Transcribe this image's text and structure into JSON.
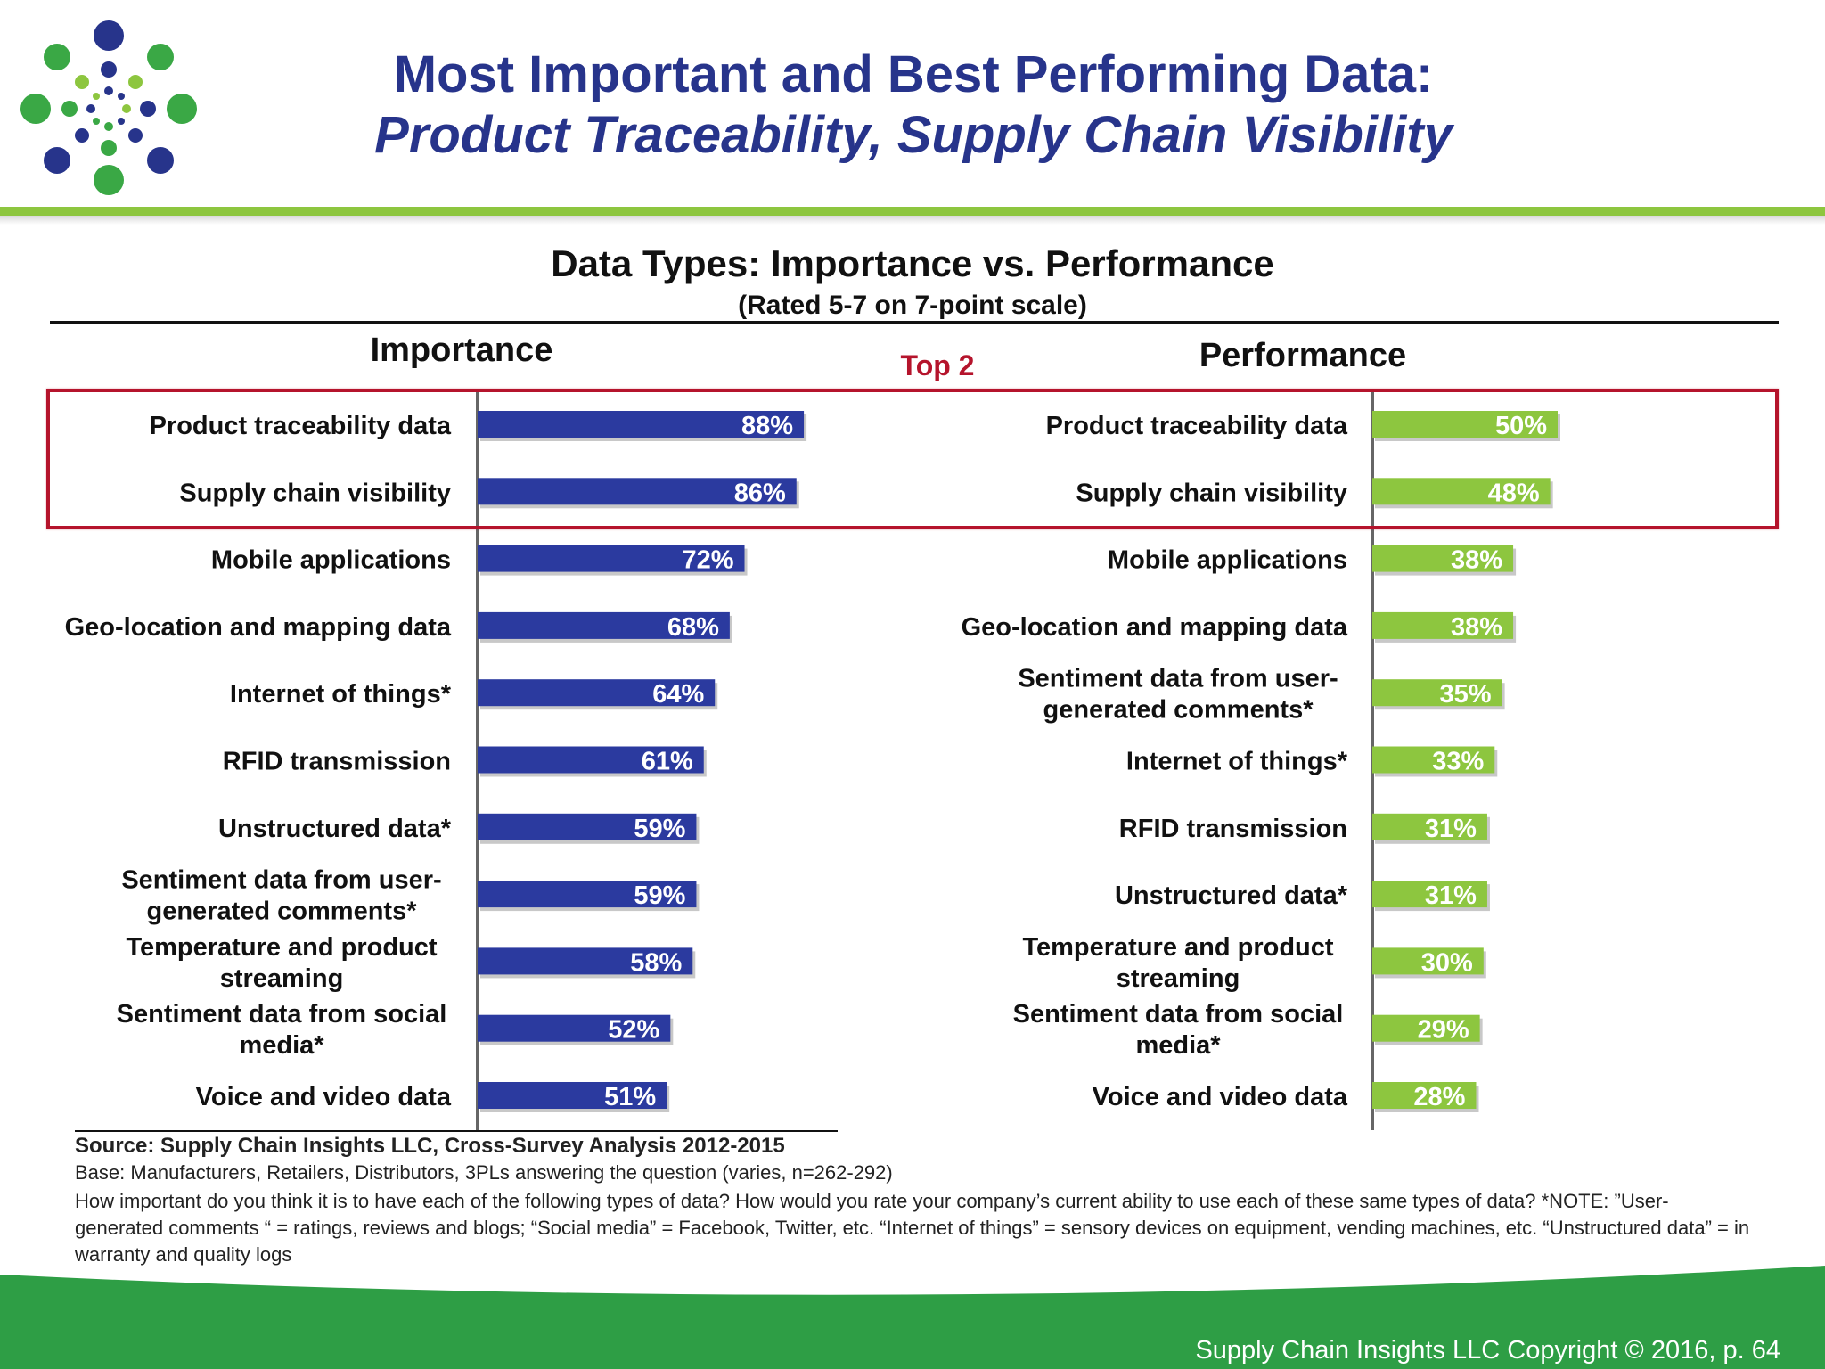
{
  "slide": {
    "title_line1": "Most Important and Best Performing Data:",
    "title_line2": "Product Traceability, Supply Chain Visibility",
    "copyright": "Supply Chain Insights LLC Copyright © 2016, p. 64"
  },
  "colors": {
    "title": "#27348b",
    "importance_bar": "#2b3a9f",
    "performance_bar": "#8dc63f",
    "highlight_box": "#b5142c",
    "footer_green": "#2e9e45",
    "header_band": "#8dc63f"
  },
  "chart_data": {
    "type": "bar",
    "title": "Data Types:  Importance vs. Performance",
    "subtitle": "(Rated 5-7 on 7-point scale)",
    "highlight_label": "Top 2",
    "unit": "%",
    "panels": [
      {
        "name": "Importance",
        "color": "#2b3a9f",
        "categories": [
          "Product traceability data",
          "Supply chain visibility",
          "Mobile applications",
          "Geo-location and mapping data",
          "Internet of things*",
          "RFID transmission",
          "Unstructured data*",
          "Sentiment data from user-generated comments*",
          "Temperature and product streaming",
          "Sentiment data from social media*",
          "Voice and video data"
        ],
        "label_lines": [
          [
            "Product traceability data"
          ],
          [
            "Supply chain visibility"
          ],
          [
            "Mobile applications"
          ],
          [
            "Geo-location and mapping data"
          ],
          [
            "Internet of things*"
          ],
          [
            "RFID transmission"
          ],
          [
            "Unstructured data*"
          ],
          [
            "Sentiment data from user-",
            "generated comments*"
          ],
          [
            "Temperature and product",
            "streaming"
          ],
          [
            "Sentiment data from social",
            "media*"
          ],
          [
            "Voice and video data"
          ]
        ],
        "values": [
          88,
          86,
          72,
          68,
          64,
          61,
          59,
          59,
          58,
          52,
          51
        ],
        "value_labels": [
          "88%",
          "86%",
          "72%",
          "68%",
          "64%",
          "61%",
          "59%",
          "59%",
          "58%",
          "52%",
          "51%"
        ]
      },
      {
        "name": "Performance",
        "color": "#8dc63f",
        "categories": [
          "Product traceability data",
          "Supply chain visibility",
          "Mobile applications",
          "Geo-location and mapping data",
          "Sentiment data from user-generated comments*",
          "Internet of things*",
          "RFID transmission",
          "Unstructured data*",
          "Temperature and product streaming",
          "Sentiment data from social media*",
          "Voice and video data"
        ],
        "label_lines": [
          [
            "Product traceability data"
          ],
          [
            "Supply chain visibility"
          ],
          [
            "Mobile applications"
          ],
          [
            "Geo-location and mapping data"
          ],
          [
            "Sentiment data from user-",
            "generated comments*"
          ],
          [
            "Internet of things*"
          ],
          [
            "RFID transmission"
          ],
          [
            "Unstructured data*"
          ],
          [
            "Temperature and product",
            "streaming"
          ],
          [
            "Sentiment data from social",
            "media*"
          ],
          [
            "Voice and video data"
          ]
        ],
        "values": [
          50,
          48,
          38,
          38,
          35,
          33,
          31,
          31,
          30,
          29,
          28
        ],
        "value_labels": [
          "50%",
          "48%",
          "38%",
          "38%",
          "35%",
          "33%",
          "31%",
          "31%",
          "30%",
          "29%",
          "28%"
        ]
      }
    ],
    "grid": false
  },
  "source": {
    "line": "Source:  Supply Chain Insights LLC, Cross-Survey Analysis 2012-2015",
    "base": "Base:  Manufacturers, Retailers, Distributors, 3PLs answering the question (varies, n=262-292)",
    "note": "How important do you think it is to have each of the following types of data?  How would you rate your company’s current ability to use each of these same types of data? *NOTE: ”User-generated comments “ = ratings, reviews and blogs; “Social media” = Facebook, Twitter, etc. “Internet of things” = sensory devices on equipment, vending machines, etc. “Unstructured data” = in warranty  and quality logs"
  }
}
